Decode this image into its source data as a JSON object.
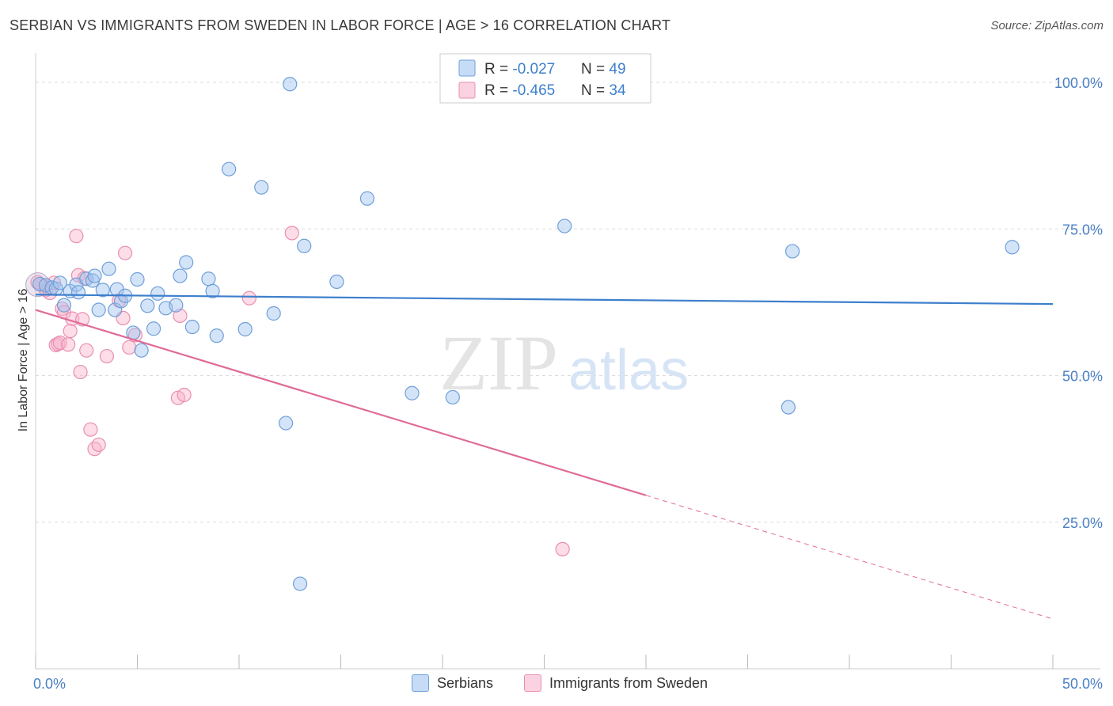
{
  "header": {
    "title": "SERBIAN VS IMMIGRANTS FROM SWEDEN IN LABOR FORCE | AGE > 16 CORRELATION CHART",
    "source": "Source: ZipAtlas.com"
  },
  "watermark": {
    "zip": "ZIP",
    "atlas": "atlas"
  },
  "colors": {
    "blue": "#6f9fd8",
    "blue_fill": "rgba(160,196,240,0.45)",
    "blue_line": "#3d7fcc",
    "pink": "#ea8fb0",
    "pink_fill": "rgba(248,180,205,0.45)",
    "pink_line": "#e06b98",
    "axis_text": "#4a7fc4"
  },
  "chart_data": {
    "type": "scatter",
    "title": "SERBIAN VS IMMIGRANTS FROM SWEDEN IN LABOR FORCE | AGE > 16 CORRELATION CHART",
    "xlabel": "",
    "ylabel": "In Labor Force | Age > 16",
    "xlim": [
      0,
      50
    ],
    "ylim": [
      0,
      105
    ],
    "x_tick_labels": [
      "0.0%",
      "50.0%"
    ],
    "y_ticks": [
      25,
      50,
      75,
      100
    ],
    "y_tick_labels": [
      "25.0%",
      "50.0%",
      "75.0%",
      "100.0%"
    ],
    "grid": "horizontal dashed",
    "stats_legend": [
      {
        "r_label": "R = ",
        "r_value": "-0.027",
        "n_label": "N = ",
        "n_value": "49"
      },
      {
        "r_label": "R = ",
        "r_value": "-0.465",
        "n_label": "N = ",
        "n_value": "34"
      }
    ],
    "series": [
      {
        "name": "Serbians",
        "trend": {
          "x0": 0,
          "y0": 63.8,
          "x1": 50,
          "y1": 62.2,
          "solid_until": 50
        },
        "points": [
          [
            0.2,
            65.6
          ],
          [
            0.5,
            65.4
          ],
          [
            0.8,
            65.0
          ],
          [
            1.0,
            64.8
          ],
          [
            1.2,
            65.8
          ],
          [
            1.4,
            62.0
          ],
          [
            1.7,
            64.4
          ],
          [
            2.0,
            65.5
          ],
          [
            2.1,
            64.2
          ],
          [
            2.5,
            66.5
          ],
          [
            2.8,
            66.2
          ],
          [
            2.9,
            67.0
          ],
          [
            3.1,
            61.2
          ],
          [
            3.3,
            64.6
          ],
          [
            3.6,
            68.2
          ],
          [
            3.9,
            61.2
          ],
          [
            4.0,
            64.7
          ],
          [
            4.2,
            62.7
          ],
          [
            4.4,
            63.6
          ],
          [
            4.8,
            57.3
          ],
          [
            5.0,
            66.4
          ],
          [
            5.2,
            54.3
          ],
          [
            5.5,
            61.9
          ],
          [
            5.8,
            58.0
          ],
          [
            6.0,
            64.0
          ],
          [
            6.4,
            61.5
          ],
          [
            6.9,
            62.0
          ],
          [
            7.1,
            67.0
          ],
          [
            7.4,
            69.3
          ],
          [
            7.7,
            58.3
          ],
          [
            8.5,
            66.5
          ],
          [
            8.7,
            64.4
          ],
          [
            8.9,
            56.8
          ],
          [
            9.5,
            85.2
          ],
          [
            10.3,
            57.9
          ],
          [
            11.1,
            82.1
          ],
          [
            11.7,
            60.6
          ],
          [
            12.3,
            41.9
          ],
          [
            12.5,
            99.7
          ],
          [
            13.0,
            14.5
          ],
          [
            13.2,
            72.1
          ],
          [
            14.8,
            66.0
          ],
          [
            16.3,
            80.2
          ],
          [
            18.5,
            47.0
          ],
          [
            20.5,
            46.3
          ],
          [
            26.0,
            75.5
          ],
          [
            37.0,
            44.6
          ],
          [
            37.2,
            71.2
          ],
          [
            48.0,
            71.9
          ]
        ]
      },
      {
        "name": "Immigrants from Sweden",
        "trend": {
          "x0": 0,
          "y0": 61.2,
          "x1": 50,
          "y1": 8.5,
          "solid_until": 30
        },
        "points": [
          [
            0.3,
            65.4
          ],
          [
            0.5,
            64.6
          ],
          [
            0.7,
            64.1
          ],
          [
            0.9,
            65.8
          ],
          [
            1.0,
            55.2
          ],
          [
            1.1,
            55.4
          ],
          [
            1.2,
            55.6
          ],
          [
            1.3,
            61.4
          ],
          [
            1.4,
            60.8
          ],
          [
            1.6,
            55.3
          ],
          [
            1.7,
            57.6
          ],
          [
            1.8,
            59.7
          ],
          [
            2.0,
            73.8
          ],
          [
            2.1,
            67.1
          ],
          [
            2.2,
            50.6
          ],
          [
            2.3,
            59.6
          ],
          [
            2.4,
            66.6
          ],
          [
            2.5,
            54.3
          ],
          [
            2.7,
            40.8
          ],
          [
            2.9,
            37.5
          ],
          [
            3.1,
            38.2
          ],
          [
            3.5,
            53.3
          ],
          [
            4.1,
            62.8
          ],
          [
            4.3,
            59.8
          ],
          [
            4.4,
            70.9
          ],
          [
            4.6,
            54.8
          ],
          [
            4.9,
            56.9
          ],
          [
            7.0,
            46.2
          ],
          [
            7.1,
            60.2
          ],
          [
            7.3,
            46.7
          ],
          [
            10.5,
            63.2
          ],
          [
            12.6,
            74.3
          ],
          [
            25.9,
            20.4
          ],
          [
            0.1,
            65.9
          ]
        ]
      }
    ]
  },
  "bottom_legend": {
    "serbians": "Serbians",
    "sweden": "Immigrants from Sweden"
  }
}
